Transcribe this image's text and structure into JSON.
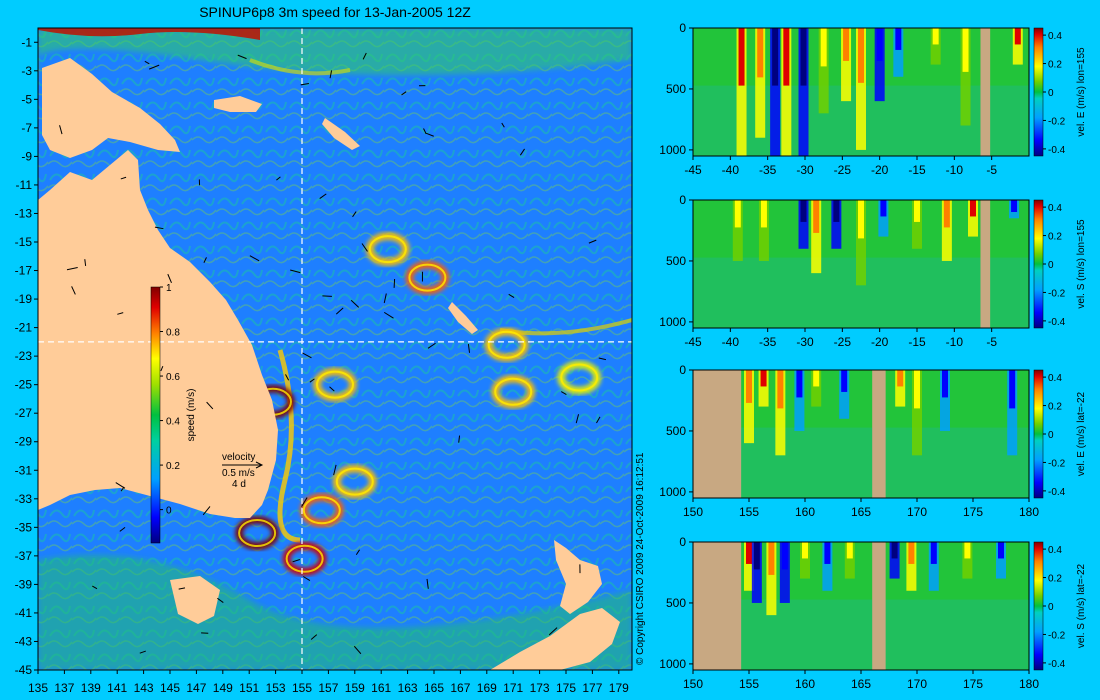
{
  "title": "SPINUP6p8 3m speed for 13-Jan-2005 12Z",
  "copyright": "© Copyright CSIRO 2009   24-Oct-2009 16:12:51",
  "colors": {
    "background": "#00ccff",
    "land": "#ffcc99",
    "section_land": "#c8a882",
    "ocean_low": "#1e7fff",
    "ocean_mid": "#00cc88",
    "ocean_high": "#ff3300"
  },
  "chart_data": [
    {
      "id": "map",
      "type": "heatmap",
      "variable": "speed",
      "colorbar_label": "speed (m/s)",
      "colorbar_ticks": [
        "0",
        "0.2",
        "0.4",
        "0.6",
        "0.8",
        "1"
      ],
      "colorbar_range": [
        -0.15,
        1.0
      ],
      "xlim": [
        135,
        180
      ],
      "ylim": [
        -45,
        0
      ],
      "xticks": [
        "135",
        "137",
        "139",
        "141",
        "143",
        "145",
        "147",
        "149",
        "151",
        "153",
        "155",
        "157",
        "159",
        "161",
        "163",
        "165",
        "167",
        "169",
        "171",
        "173",
        "175",
        "177",
        "179"
      ],
      "yticks": [
        "-1",
        "-3",
        "-5",
        "-7",
        "-9",
        "-11",
        "-13",
        "-15",
        "-17",
        "-19",
        "-21",
        "-23",
        "-25",
        "-27",
        "-29",
        "-31",
        "-33",
        "-35",
        "-37",
        "-39",
        "-41",
        "-43",
        "-45"
      ],
      "section_lon": 155,
      "section_lat": -22,
      "velocity_key": {
        "label": "velocity",
        "speed": "0.5 m/s",
        "duration": "4 d"
      },
      "eddies": [
        {
          "lon": 152.8,
          "lat": -26.2,
          "speed": 1.0
        },
        {
          "lon": 151.6,
          "lat": -35.4,
          "speed": 0.95
        },
        {
          "lon": 155.2,
          "lat": -37.2,
          "speed": 0.85
        },
        {
          "lon": 156.5,
          "lat": -33.8,
          "speed": 0.75
        },
        {
          "lon": 159.0,
          "lat": -31.8,
          "speed": 0.7
        },
        {
          "lon": 164.5,
          "lat": -17.5,
          "speed": 0.8
        },
        {
          "lon": 161.5,
          "lat": -15.5,
          "speed": 0.65
        },
        {
          "lon": 171.0,
          "lat": -25.5,
          "speed": 0.6
        },
        {
          "lon": 157.5,
          "lat": -25.0,
          "speed": 0.6
        },
        {
          "lon": 170.5,
          "lat": -22.2,
          "speed": 0.65
        },
        {
          "lon": 176.0,
          "lat": -24.5,
          "speed": 0.55
        }
      ]
    },
    {
      "id": "section-1",
      "type": "heatmap",
      "label": "vel. E (m/s) lon=155",
      "xlim": [
        -45,
        0
      ],
      "ylim": [
        1050,
        0
      ],
      "xticks": [
        "-45",
        "-40",
        "-35",
        "-30",
        "-25",
        "-20",
        "-15",
        "-10",
        "-5"
      ],
      "yticks": [
        "0",
        "500",
        "1000"
      ],
      "colorbar_ticks": [
        "0.4",
        "0.2",
        "0",
        "-0.2",
        "-0.4"
      ],
      "land": [
        [
          -6.5,
          -5.2
        ]
      ],
      "features": [
        {
          "x": -38.5,
          "v": 0.45,
          "depth": 1050
        },
        {
          "x": -36.0,
          "v": 0.4,
          "depth": 900
        },
        {
          "x": -34.0,
          "v": -0.4,
          "depth": 1050
        },
        {
          "x": -32.5,
          "v": 0.42,
          "depth": 1050
        },
        {
          "x": -30.2,
          "v": -0.38,
          "depth": 1050
        },
        {
          "x": -27.5,
          "v": 0.3,
          "depth": 700
        },
        {
          "x": -24.5,
          "v": 0.35,
          "depth": 600
        },
        {
          "x": -22.5,
          "v": 0.38,
          "depth": 1000
        },
        {
          "x": -20.0,
          "v": -0.35,
          "depth": 600
        },
        {
          "x": -17.5,
          "v": -0.25,
          "depth": 400
        },
        {
          "x": -12.5,
          "v": 0.3,
          "depth": 300
        },
        {
          "x": -8.5,
          "v": 0.25,
          "depth": 800
        },
        {
          "x": -1.5,
          "v": 0.45,
          "depth": 300
        }
      ]
    },
    {
      "id": "section-2",
      "type": "heatmap",
      "label": "vel. S (m/s) lon=155",
      "xlim": [
        -45,
        0
      ],
      "ylim": [
        1050,
        0
      ],
      "xticks": [
        "-45",
        "-40",
        "-35",
        "-30",
        "-25",
        "-20",
        "-15",
        "-10",
        "-5"
      ],
      "yticks": [
        "0",
        "500",
        "1000"
      ],
      "colorbar_ticks": [
        "0.4",
        "0.2",
        "0",
        "-0.2",
        "-0.4"
      ],
      "land": [
        [
          -6.5,
          -5.2
        ]
      ],
      "features": [
        {
          "x": -39.0,
          "v": 0.25,
          "depth": 500
        },
        {
          "x": -35.5,
          "v": 0.3,
          "depth": 500
        },
        {
          "x": -30.2,
          "v": -0.42,
          "depth": 400
        },
        {
          "x": -28.5,
          "v": 0.4,
          "depth": 600
        },
        {
          "x": -25.8,
          "v": -0.4,
          "depth": 400
        },
        {
          "x": -22.5,
          "v": 0.3,
          "depth": 700
        },
        {
          "x": -19.5,
          "v": -0.25,
          "depth": 300
        },
        {
          "x": -15.0,
          "v": 0.28,
          "depth": 400
        },
        {
          "x": -11.0,
          "v": 0.35,
          "depth": 500
        },
        {
          "x": -7.5,
          "v": 0.45,
          "depth": 300
        },
        {
          "x": -2.0,
          "v": -0.3,
          "depth": 150
        }
      ]
    },
    {
      "id": "section-3",
      "type": "heatmap",
      "label": "vel. E (m/s) lat=-22",
      "xlim": [
        150,
        180
      ],
      "ylim": [
        1050,
        0
      ],
      "xticks": [
        "150",
        "155",
        "160",
        "165",
        "170",
        "175",
        "180"
      ],
      "yticks": [
        "0",
        "500",
        "1000"
      ],
      "colorbar_ticks": [
        "0.4",
        "0.2",
        "0",
        "-0.2",
        "-0.4"
      ],
      "land": [
        [
          150,
          154.3
        ],
        [
          166.0,
          167.2
        ]
      ],
      "features": [
        {
          "x": 155.0,
          "v": 0.35,
          "depth": 600
        },
        {
          "x": 156.3,
          "v": 0.45,
          "depth": 300
        },
        {
          "x": 157.8,
          "v": 0.35,
          "depth": 700
        },
        {
          "x": 159.5,
          "v": -0.25,
          "depth": 500
        },
        {
          "x": 161.0,
          "v": 0.3,
          "depth": 300
        },
        {
          "x": 163.5,
          "v": -0.25,
          "depth": 400
        },
        {
          "x": 168.5,
          "v": 0.4,
          "depth": 300
        },
        {
          "x": 170.0,
          "v": 0.25,
          "depth": 700
        },
        {
          "x": 172.5,
          "v": -0.25,
          "depth": 500
        },
        {
          "x": 178.5,
          "v": -0.3,
          "depth": 700
        }
      ]
    },
    {
      "id": "section-4",
      "type": "heatmap",
      "label": "vel. S (m/s) lat=-22",
      "xlim": [
        150,
        180
      ],
      "ylim": [
        1050,
        0
      ],
      "xticks": [
        "150",
        "155",
        "160",
        "165",
        "170",
        "175",
        "180"
      ],
      "yticks": [
        "0",
        "500",
        "1000"
      ],
      "colorbar_ticks": [
        "0.4",
        "0.2",
        "0",
        "-0.2",
        "-0.4"
      ],
      "land": [
        [
          150,
          154.3
        ],
        [
          166.0,
          167.2
        ]
      ],
      "features": [
        {
          "x": 155.0,
          "v": 0.45,
          "depth": 400
        },
        {
          "x": 155.7,
          "v": -0.45,
          "depth": 500
        },
        {
          "x": 157.0,
          "v": 0.4,
          "depth": 600
        },
        {
          "x": 158.2,
          "v": -0.35,
          "depth": 500
        },
        {
          "x": 160.0,
          "v": 0.3,
          "depth": 300
        },
        {
          "x": 162.0,
          "v": -0.3,
          "depth": 400
        },
        {
          "x": 164.0,
          "v": 0.25,
          "depth": 300
        },
        {
          "x": 168.0,
          "v": -0.4,
          "depth": 300
        },
        {
          "x": 169.5,
          "v": 0.38,
          "depth": 400
        },
        {
          "x": 171.5,
          "v": -0.3,
          "depth": 400
        },
        {
          "x": 174.5,
          "v": 0.3,
          "depth": 300
        },
        {
          "x": 177.5,
          "v": -0.25,
          "depth": 300
        }
      ]
    }
  ]
}
